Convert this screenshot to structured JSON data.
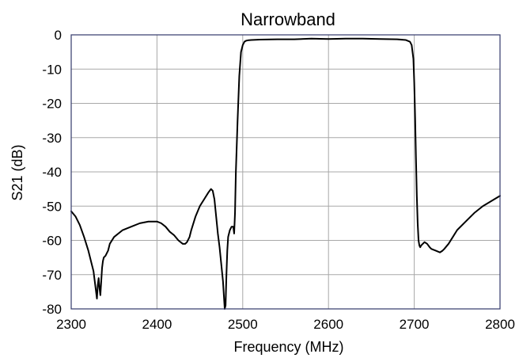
{
  "chart_data": {
    "type": "line",
    "title": "Narrowband",
    "xlabel": "Frequency (MHz)",
    "ylabel": "S21 (dB)",
    "xlim": [
      2300,
      2800
    ],
    "ylim": [
      -80,
      0
    ],
    "xticks": [
      2300,
      2400,
      2500,
      2600,
      2700,
      2800
    ],
    "yticks": [
      0,
      -10,
      -20,
      -30,
      -40,
      -50,
      -60,
      -70,
      -80
    ],
    "grid": true,
    "series": [
      {
        "color": "#000000",
        "x": [
          2300,
          2305,
          2310,
          2315,
          2320,
          2323,
          2326,
          2328,
          2330,
          2331,
          2332,
          2333,
          2334,
          2335,
          2336,
          2337,
          2338,
          2340,
          2343,
          2345,
          2350,
          2360,
          2370,
          2380,
          2390,
          2400,
          2405,
          2410,
          2415,
          2420,
          2425,
          2430,
          2433,
          2435,
          2438,
          2440,
          2445,
          2450,
          2455,
          2460,
          2463,
          2465,
          2467,
          2469,
          2471,
          2473,
          2475,
          2477,
          2478,
          2479,
          2480,
          2481,
          2482,
          2483,
          2485,
          2487,
          2489,
          2490,
          2491,
          2492,
          2494,
          2496,
          2498,
          2500,
          2502,
          2504,
          2506,
          2510,
          2520,
          2540,
          2560,
          2580,
          2600,
          2620,
          2640,
          2660,
          2680,
          2690,
          2695,
          2697,
          2699,
          2700,
          2701,
          2702,
          2703,
          2704,
          2705,
          2706,
          2707,
          2708,
          2710,
          2712,
          2715,
          2718,
          2720,
          2725,
          2730,
          2733,
          2735,
          2740,
          2745,
          2750,
          2760,
          2770,
          2780,
          2790,
          2800
        ],
        "y": [
          -51.5,
          -53,
          -55.5,
          -59,
          -63,
          -66,
          -69,
          -73,
          -77,
          -73,
          -71,
          -74,
          -76,
          -72,
          -68,
          -66,
          -65,
          -64.5,
          -63,
          -61,
          -59,
          -57,
          -56,
          -55,
          -54.5,
          -54.5,
          -55,
          -56,
          -57.5,
          -58.5,
          -60,
          -61,
          -61,
          -60.5,
          -59,
          -57,
          -53,
          -50,
          -48,
          -46,
          -45,
          -45.5,
          -48,
          -53,
          -58,
          -62,
          -67,
          -72,
          -76,
          -80,
          -79,
          -70,
          -63,
          -59,
          -57,
          -56,
          -56,
          -58,
          -52,
          -40,
          -25,
          -12,
          -5,
          -3,
          -2,
          -1.7,
          -1.6,
          -1.5,
          -1.4,
          -1.3,
          -1.3,
          -1.1,
          -1.2,
          -1.1,
          -1.1,
          -1.2,
          -1.3,
          -1.5,
          -2,
          -3,
          -7,
          -14,
          -24,
          -36,
          -47,
          -55,
          -60,
          -61.5,
          -62,
          -61.5,
          -61,
          -60.5,
          -61,
          -62,
          -62.5,
          -63,
          -63.5,
          -63,
          -62.5,
          -61,
          -59,
          -57,
          -54.5,
          -52,
          -50,
          -48.5,
          -47
        ]
      }
    ]
  }
}
